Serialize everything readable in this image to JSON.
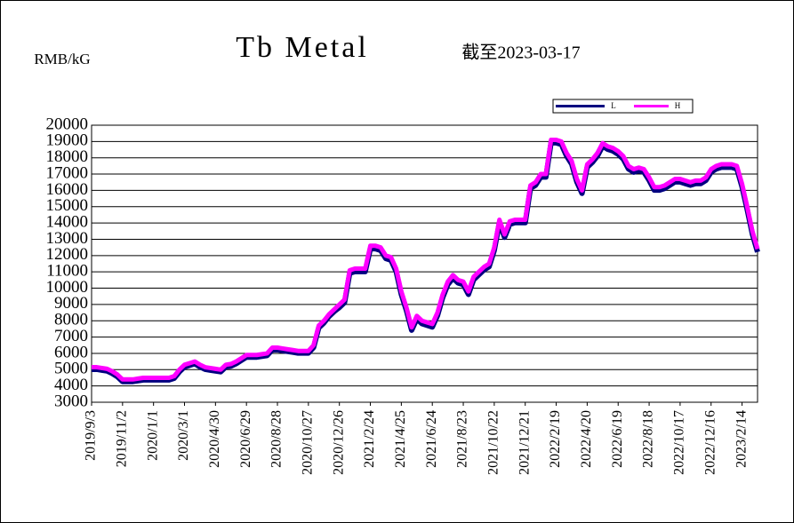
{
  "chart_data": {
    "type": "line",
    "title": "Tb Metal",
    "subtitle": "截至2023-03-17",
    "y_label": "RMB/kG",
    "categories": [
      "2019/9/3",
      null,
      null,
      null,
      null,
      null,
      "2019/11/2",
      null,
      null,
      null,
      null,
      null,
      "2020/1/1",
      null,
      null,
      null,
      null,
      null,
      "2020/3/1",
      null,
      null,
      null,
      null,
      null,
      "2020/4/30",
      null,
      null,
      null,
      null,
      null,
      "2020/6/29",
      null,
      null,
      null,
      null,
      null,
      "2020/8/28",
      null,
      null,
      null,
      null,
      null,
      "2020/10/27",
      null,
      null,
      null,
      null,
      null,
      "2020/12/26",
      null,
      null,
      null,
      null,
      null,
      "2021/2/24",
      null,
      null,
      null,
      null,
      null,
      "2021/4/25",
      null,
      null,
      null,
      null,
      null,
      "2021/6/24",
      null,
      null,
      null,
      null,
      null,
      "2021/8/23",
      null,
      null,
      null,
      null,
      null,
      "2021/10/22",
      null,
      null,
      null,
      null,
      null,
      "2021/12/21",
      null,
      null,
      null,
      null,
      null,
      "2022/2/19",
      null,
      null,
      null,
      null,
      null,
      "2022/4/20",
      null,
      null,
      null,
      null,
      null,
      "2022/6/19",
      null,
      null,
      null,
      null,
      null,
      "2022/8/18",
      null,
      null,
      null,
      null,
      null,
      "2022/10/17",
      null,
      null,
      null,
      null,
      null,
      "2022/12/16",
      null,
      null,
      null,
      null,
      null,
      "2023/2/14",
      null,
      null,
      null
    ],
    "series": [
      {
        "name": "L",
        "color": "#000080",
        "values": [
          5100,
          5100,
          5050,
          5000,
          4850,
          4650,
          4350,
          4350,
          4350,
          4400,
          4450,
          4450,
          4450,
          4450,
          4450,
          4450,
          4550,
          4950,
          5250,
          5350,
          5450,
          5250,
          5100,
          5050,
          5000,
          4950,
          5250,
          5300,
          5450,
          5650,
          5850,
          5850,
          5850,
          5900,
          5950,
          6300,
          6300,
          6250,
          6200,
          6150,
          6100,
          6100,
          6100,
          6450,
          7650,
          7950,
          8350,
          8650,
          8900,
          9200,
          11000,
          11100,
          11100,
          11100,
          12500,
          12500,
          12400,
          11900,
          11800,
          11100,
          9700,
          8700,
          7500,
          8200,
          7900,
          7800,
          7700,
          8400,
          9500,
          10300,
          10700,
          10400,
          10300,
          9700,
          10600,
          10900,
          11200,
          11400,
          12400,
          14100,
          13200,
          14000,
          14100,
          14100,
          14100,
          16200,
          16400,
          16900,
          16900,
          19000,
          19000,
          18900,
          18200,
          17700,
          16600,
          15900,
          17500,
          17800,
          18200,
          18800,
          18600,
          18500,
          18300,
          18000,
          17400,
          17200,
          17300,
          17200,
          16700,
          16100,
          16100,
          16200,
          16400,
          16600,
          16600,
          16500,
          16400,
          16500,
          16500,
          16700,
          17200,
          17400,
          17500,
          17500,
          17500,
          17400,
          16300,
          14900,
          13400,
          12300
        ]
      },
      {
        "name": "H",
        "color": "#ff00ff",
        "values": [
          5150,
          5150,
          5100,
          5050,
          4900,
          4700,
          4400,
          4400,
          4400,
          4450,
          4500,
          4500,
          4500,
          4500,
          4500,
          4500,
          4600,
          5000,
          5300,
          5400,
          5500,
          5300,
          5150,
          5100,
          5050,
          5000,
          5300,
          5350,
          5500,
          5700,
          5900,
          5900,
          5900,
          5950,
          6000,
          6350,
          6350,
          6300,
          6250,
          6200,
          6150,
          6150,
          6150,
          6500,
          7700,
          8000,
          8400,
          8700,
          9000,
          9300,
          11100,
          11200,
          11200,
          11200,
          12600,
          12600,
          12500,
          12000,
          11900,
          11200,
          9800,
          8800,
          7600,
          8300,
          8000,
          7900,
          7800,
          8500,
          9600,
          10400,
          10800,
          10500,
          10400,
          9800,
          10700,
          11000,
          11300,
          11500,
          12500,
          14200,
          13300,
          14100,
          14200,
          14200,
          14200,
          16300,
          16500,
          17000,
          17000,
          19100,
          19100,
          19000,
          18300,
          17800,
          16700,
          16000,
          17600,
          17900,
          18300,
          18900,
          18700,
          18600,
          18400,
          18100,
          17500,
          17300,
          17400,
          17300,
          16800,
          16200,
          16200,
          16300,
          16500,
          16700,
          16700,
          16600,
          16500,
          16600,
          16600,
          16800,
          17300,
          17500,
          17600,
          17600,
          17600,
          17500,
          16400,
          15000,
          13500,
          12400
        ]
      }
    ],
    "ylim": [
      3000,
      20000
    ],
    "yticks": [
      3000,
      4000,
      5000,
      6000,
      7000,
      8000,
      9000,
      10000,
      11000,
      12000,
      13000,
      14000,
      15000,
      16000,
      17000,
      18000,
      19000,
      20000
    ],
    "grid": true
  }
}
